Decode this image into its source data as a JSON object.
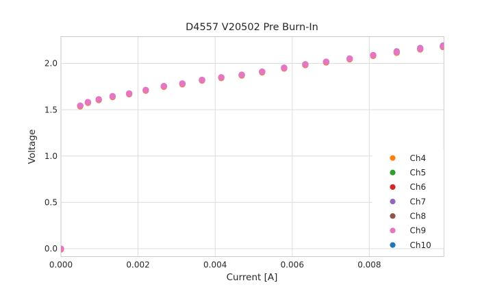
{
  "chart_data": {
    "type": "scatter",
    "title": "D4557 V20502 Pre Burn-In",
    "xlabel": "Current [A]",
    "ylabel": "Voltage",
    "xlim": [
      0,
      0.009935
    ],
    "ylim": [
      -0.085,
      2.288
    ],
    "xticks": [
      0,
      0.002,
      0.004,
      0.006,
      0.008
    ],
    "xtick_labels": [
      "0.000",
      "0.002",
      "0.004",
      "0.006",
      "0.008"
    ],
    "yticks": [
      0.0,
      0.5,
      1.0,
      1.5,
      2.0
    ],
    "ytick_labels": [
      "0.0",
      "0.5",
      "1.0",
      "1.5",
      "2.0"
    ],
    "grid": true,
    "legend": {
      "position": "lower right",
      "entries": [
        {
          "label": "Ch4",
          "color": "#ff7f0e"
        },
        {
          "label": "Ch5",
          "color": "#2ca02c"
        },
        {
          "label": "Ch6",
          "color": "#d62728"
        },
        {
          "label": "Ch7",
          "color": "#9467bd"
        },
        {
          "label": "Ch8",
          "color": "#8c564b"
        },
        {
          "label": "Ch9",
          "color": "#e377c2"
        },
        {
          "label": "Ch10",
          "color": "#1f77b4"
        }
      ]
    },
    "marker": {
      "top_color": "#e377c2",
      "under_color": "#ff7f0e",
      "cap_color": "#9467bd",
      "radius": 4.8
    },
    "overlap_note": "All channels plot coincident points; Ch9 (pink) is topmost with orange/purple fringes visible at dot edges",
    "points": [
      [
        0.0,
        0.0
      ],
      [
        0.0005,
        1.543
      ],
      [
        0.0007,
        1.581
      ],
      [
        0.00098,
        1.611
      ],
      [
        0.00134,
        1.645
      ],
      [
        0.00177,
        1.674
      ],
      [
        0.0022,
        1.712
      ],
      [
        0.00267,
        1.754
      ],
      [
        0.00315,
        1.782
      ],
      [
        0.00366,
        1.821
      ],
      [
        0.00416,
        1.849
      ],
      [
        0.00469,
        1.876
      ],
      [
        0.00522,
        1.91
      ],
      [
        0.00579,
        1.952
      ],
      [
        0.00634,
        1.989
      ],
      [
        0.00688,
        2.017
      ],
      [
        0.00749,
        2.051
      ],
      [
        0.0081,
        2.088
      ],
      [
        0.00871,
        2.122
      ],
      [
        0.00932,
        2.158
      ],
      [
        0.00991,
        2.184
      ]
    ]
  },
  "style": {
    "background": "#ffffff",
    "grid_color": "#dcdcdc",
    "spine_color": "#c9c9c9",
    "text_color": "#262626",
    "legend_bg": "#ffffff"
  }
}
